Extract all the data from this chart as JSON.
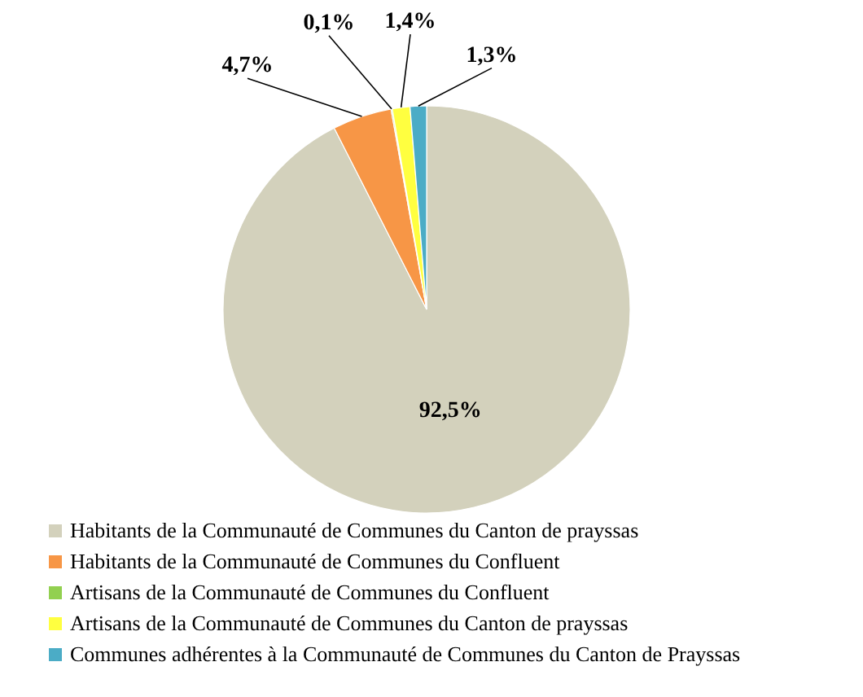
{
  "chart_data": {
    "type": "pie",
    "categories": [
      "Habitants de la Communauté de Communes du Canton de prayssas",
      "Habitants de la Communauté de Communes du Confluent",
      "Artisans de la Communauté de Communes du Confluent",
      "Artisans de la Communauté de Communes du Canton de prayssas",
      "Communes adhérentes à la Communauté de Communes du Canton de Prayssas"
    ],
    "values": [
      92.5,
      4.7,
      0.1,
      1.4,
      1.3
    ],
    "value_labels": [
      "92,5%",
      "4,7%",
      "0,1%",
      "1,4%",
      "1,3%"
    ],
    "colors": [
      "#d3d1bc",
      "#f79646",
      "#92d050",
      "#ffff40",
      "#4bacc6"
    ],
    "legend": "bottom"
  }
}
